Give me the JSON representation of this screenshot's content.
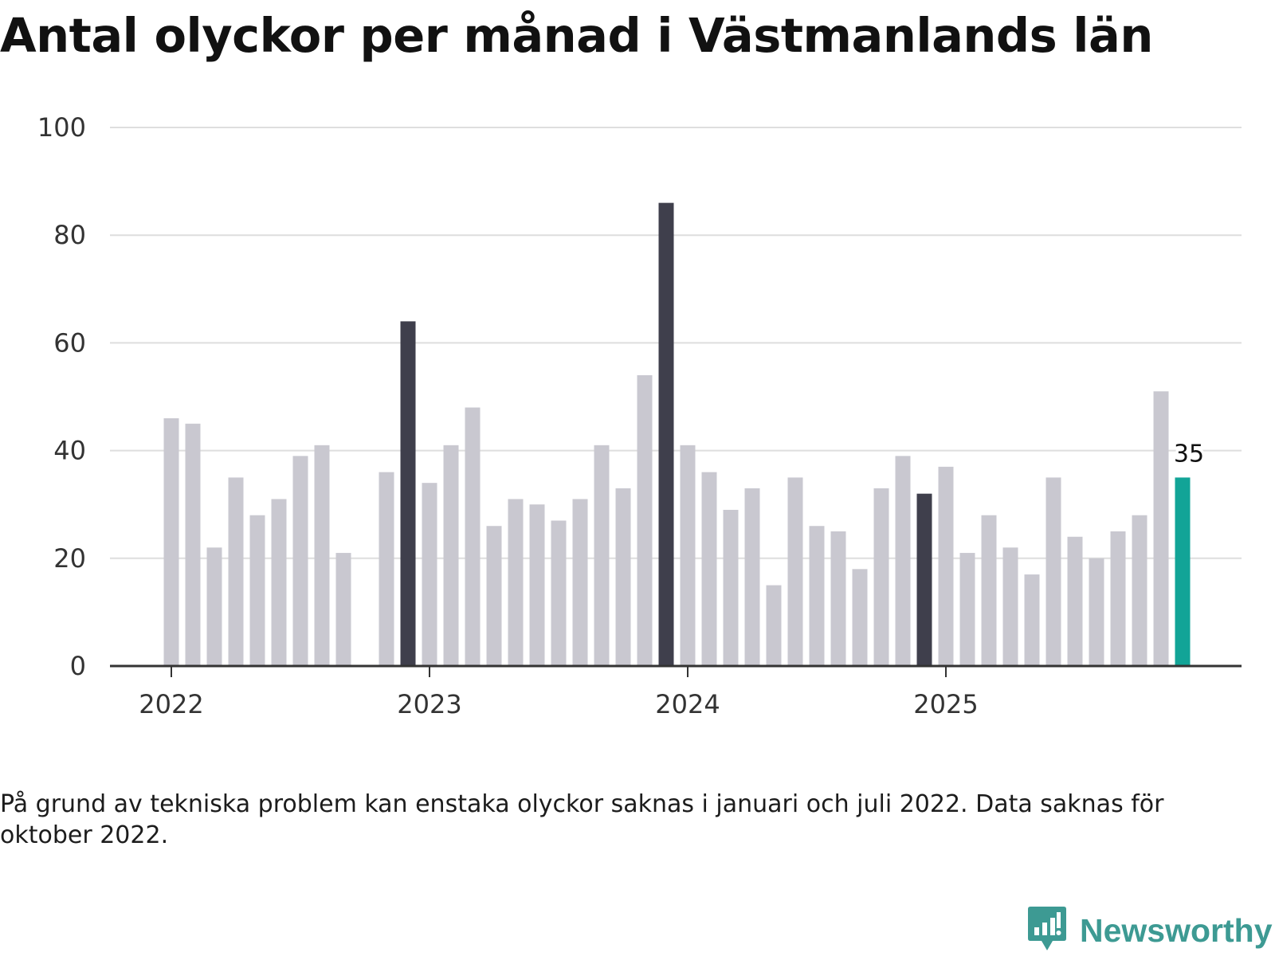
{
  "chart_data": {
    "type": "bar",
    "title": "Antal olyckor per månad i Västmanlands län",
    "xlabel": "",
    "ylabel": "",
    "ylim": [
      0,
      100
    ],
    "yticks": [
      0,
      20,
      40,
      60,
      80,
      100
    ],
    "grid": true,
    "x_tick_labels": [
      "2022",
      "2023",
      "2024",
      "2025"
    ],
    "categories": [
      "2022-01",
      "2022-02",
      "2022-03",
      "2022-04",
      "2022-05",
      "2022-06",
      "2022-07",
      "2022-08",
      "2022-09",
      "2022-10",
      "2022-11",
      "2022-12",
      "2023-01",
      "2023-02",
      "2023-03",
      "2023-04",
      "2023-05",
      "2023-06",
      "2023-07",
      "2023-08",
      "2023-09",
      "2023-10",
      "2023-11",
      "2023-12",
      "2024-01",
      "2024-02",
      "2024-03",
      "2024-04",
      "2024-05",
      "2024-06",
      "2024-07",
      "2024-08",
      "2024-09",
      "2024-10",
      "2024-11",
      "2024-12",
      "2025-01",
      "2025-02",
      "2025-03",
      "2025-04",
      "2025-05",
      "2025-06",
      "2025-07",
      "2025-08",
      "2025-09",
      "2025-10",
      "2025-11",
      "2025-12"
    ],
    "values": [
      46,
      45,
      22,
      35,
      28,
      31,
      39,
      41,
      21,
      null,
      36,
      64,
      34,
      41,
      48,
      26,
      31,
      30,
      27,
      31,
      41,
      33,
      54,
      86,
      41,
      36,
      29,
      33,
      15,
      35,
      26,
      25,
      18,
      33,
      39,
      32,
      37,
      21,
      28,
      22,
      17,
      35,
      24,
      20,
      25,
      28,
      51,
      35
    ],
    "highlight_dark": [
      "2022-12",
      "2023-12",
      "2024-12"
    ],
    "highlight_current": "2025-12",
    "data_labels": [
      {
        "category": "2025-12",
        "text": "35"
      }
    ],
    "colors": {
      "default": "#c9c8d0",
      "dark": "#3f3f4c",
      "current": "#12a497",
      "grid": "#dedede",
      "axis": "#333333"
    }
  },
  "footnote": "På grund av tekniska problem kan enstaka olyckor saknas i januari och juli 2022. Data saknas för oktober 2022.",
  "brand": {
    "name": "Newsworthy",
    "icon": "newsworthy-logo-icon",
    "color": "#3d9a93"
  }
}
